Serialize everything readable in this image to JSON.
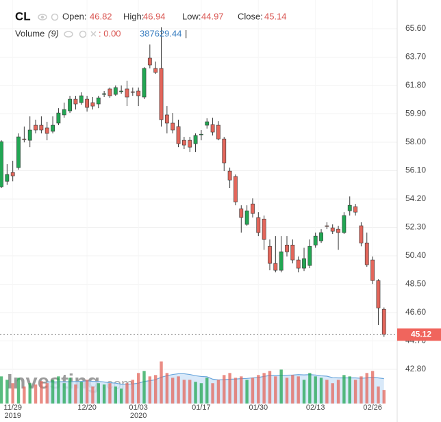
{
  "header": {
    "symbol": "CL",
    "open_label": "Open:",
    "open": 46.82,
    "high_label": "High:",
    "high": 46.94,
    "low_label": "Low:",
    "low": 44.97,
    "close_label": "Close:",
    "close": 45.14,
    "volume_label": "Volume",
    "volume_period_label": "(9)",
    "volume_value": ": 0.00",
    "volume_ma": 387629.44,
    "volume_cursor": "|"
  },
  "watermark": {
    "brand": "Investing",
    "suffix": ".com"
  },
  "chart_data": {
    "type": "candlestick",
    "categories": [
      null,
      null,
      "11/29",
      null,
      null,
      null,
      null,
      null,
      null,
      null,
      null,
      null,
      null,
      null,
      null,
      "12/20",
      null,
      null,
      null,
      null,
      null,
      null,
      null,
      null,
      "01/03",
      null,
      null,
      null,
      null,
      null,
      null,
      null,
      null,
      null,
      null,
      "01/17",
      null,
      null,
      null,
      null,
      null,
      null,
      null,
      null,
      null,
      "01/30",
      null,
      null,
      null,
      null,
      null,
      null,
      null,
      null,
      null,
      "02/13",
      null,
      null,
      null,
      null,
      null,
      null,
      null,
      null,
      null,
      "02/26",
      null,
      null
    ],
    "years": [
      null,
      null,
      "2019",
      null,
      null,
      null,
      null,
      null,
      null,
      null,
      null,
      null,
      null,
      null,
      null,
      null,
      null,
      null,
      null,
      null,
      null,
      null,
      null,
      null,
      "2020",
      null,
      null,
      null,
      null,
      null,
      null,
      null,
      null,
      null,
      null,
      null,
      null,
      null,
      null,
      null,
      null,
      null,
      null,
      null,
      null,
      null,
      null,
      null,
      null,
      null,
      null,
      null,
      null,
      null,
      null,
      null,
      null,
      null,
      null,
      null,
      null,
      null,
      null,
      null,
      null,
      null,
      null,
      null
    ],
    "open": [
      55.02,
      55.38,
      55.98,
      56.3,
      58.22,
      58.13,
      59.14,
      59.14,
      58.96,
      58.73,
      59.28,
      59.83,
      60.1,
      60.88,
      60.65,
      60.88,
      60.65,
      60.56,
      61.2,
      61.57,
      61.2,
      61.38,
      61.57,
      61.38,
      61.43,
      61.02,
      63.63,
      62.94,
      62.94,
      59.83,
      59.28,
      59.05,
      58.13,
      58.13,
      57.9,
      58.5,
      59.14,
      59.18,
      59.14,
      58.22,
      56.07,
      55.71,
      53.55,
      52.5,
      53.87,
      52.96,
      52.86,
      51.03,
      49.89,
      49.43,
      51.12,
      51.12,
      50.12,
      49.57,
      49.75,
      51.12,
      51.4,
      52.41,
      52.27,
      52.18,
      51.95,
      53.41,
      53.69,
      52.41,
      51.26,
      50.12,
      48.74,
      46.82
    ],
    "high": [
      58.13,
      56.53,
      56.76,
      58.59,
      59.05,
      59.73,
      59.51,
      59.73,
      59.37,
      59.73,
      60.28,
      60.65,
      61.11,
      61.11,
      61.34,
      61.11,
      61.02,
      61.11,
      61.43,
      61.66,
      61.8,
      61.8,
      62.12,
      61.66,
      61.66,
      63.03,
      64.54,
      63.4,
      65.69,
      60.42,
      59.96,
      59.51,
      58.36,
      58.36,
      58.59,
      58.82,
      59.6,
      59.64,
      59.41,
      58.36,
      56.3,
      55.84,
      53.78,
      53.78,
      54.24,
      53.32,
      53.09,
      51.49,
      51.72,
      51.72,
      51.72,
      51.49,
      50.35,
      50.94,
      51.49,
      51.95,
      52.18,
      52.64,
      52.5,
      52.41,
      53.32,
      54.37,
      53.87,
      52.64,
      51.95,
      50.35,
      48.83,
      46.94
    ],
    "low": [
      54.93,
      55.15,
      55.38,
      56.16,
      57.99,
      57.67,
      58.59,
      58.59,
      58.13,
      58.59,
      59.14,
      59.64,
      59.96,
      60.19,
      60.51,
      60.05,
      60.19,
      60.28,
      61.02,
      60.97,
      61.11,
      61.25,
      60.42,
      61.11,
      60.42,
      60.88,
      62.94,
      62.57,
      59.05,
      58.59,
      58.59,
      57.67,
      57.54,
      57.35,
      57.35,
      58.13,
      58.91,
      58.45,
      58.13,
      56.07,
      54.93,
      53.78,
      51.95,
      52.41,
      52.96,
      51.72,
      50.8,
      49.43,
      49.29,
      49.29,
      50.35,
      49.89,
      49.29,
      49.38,
      49.57,
      50.94,
      51.26,
      52.18,
      51.86,
      50.8,
      51.86,
      53.09,
      53.09,
      51.03,
      49.66,
      48.51,
      45.77,
      44.97
    ],
    "close": [
      58.04,
      55.84,
      55.75,
      58.36,
      58.18,
      58.82,
      58.82,
      58.82,
      58.59,
      59.14,
      59.96,
      60.19,
      60.88,
      60.56,
      61.11,
      60.33,
      60.42,
      60.97,
      61.25,
      61.11,
      61.66,
      61.43,
      61.02,
      61.34,
      61.11,
      62.94,
      63.17,
      62.67,
      59.51,
      59.28,
      58.82,
      57.9,
      57.81,
      57.67,
      58.45,
      58.54,
      59.37,
      58.68,
      58.22,
      56.62,
      55.47,
      54.01,
      52.96,
      53.41,
      53.23,
      51.95,
      51.49,
      49.89,
      49.43,
      50.67,
      50.67,
      50.12,
      49.57,
      50.21,
      51.03,
      51.72,
      51.95,
      52.36,
      52.04,
      51.95,
      53.09,
      53.78,
      53.32,
      51.26,
      49.8,
      48.74,
      46.91,
      45.14
    ],
    "volume": [
      704000,
      616000,
      528000,
      668800,
      440000,
      528000,
      492800,
      580800,
      528000,
      616000,
      704000,
      528000,
      668800,
      492800,
      563200,
      616000,
      440000,
      528000,
      492800,
      528000,
      440000,
      387200,
      528000,
      616000,
      792000,
      844800,
      704000,
      739200,
      1091200,
      792000,
      668800,
      704000,
      616000,
      616000,
      563200,
      528000,
      668800,
      528000,
      616000,
      739200,
      792000,
      668800,
      704000,
      616000,
      668800,
      739200,
      792000,
      844800,
      704000,
      880000,
      668800,
      739200,
      704000,
      616000,
      792000,
      704000,
      668800,
      616000,
      528000,
      616000,
      739200,
      704000,
      616000,
      704000,
      792000,
      844800,
      440000,
      352000
    ],
    "volume_ma_period": 9,
    "volume_lim": [
      0,
      1100000
    ],
    "ylim": [
      40.51,
      67.52
    ],
    "yticks": [
      {
        "value": 65.6,
        "label": "65.60"
      },
      {
        "value": 63.7,
        "label": "63.70"
      },
      {
        "value": 61.8,
        "label": "61.80"
      },
      {
        "value": 59.9,
        "label": "59.90"
      },
      {
        "value": 58.0,
        "label": "58.00"
      },
      {
        "value": 56.1,
        "label": "56.10"
      },
      {
        "value": 54.2,
        "label": "54.20"
      },
      {
        "value": 52.3,
        "label": "52.30"
      },
      {
        "value": 50.4,
        "label": "50.40"
      },
      {
        "value": 48.5,
        "label": "48.50"
      },
      {
        "value": 46.6,
        "label": "46.60"
      },
      {
        "value": 44.7,
        "label": "44.70"
      },
      {
        "value": 42.8,
        "label": "42.80"
      }
    ],
    "last_price": 45.12,
    "up_color": "#22a653",
    "down_color": "#e3665b",
    "grid": true
  }
}
